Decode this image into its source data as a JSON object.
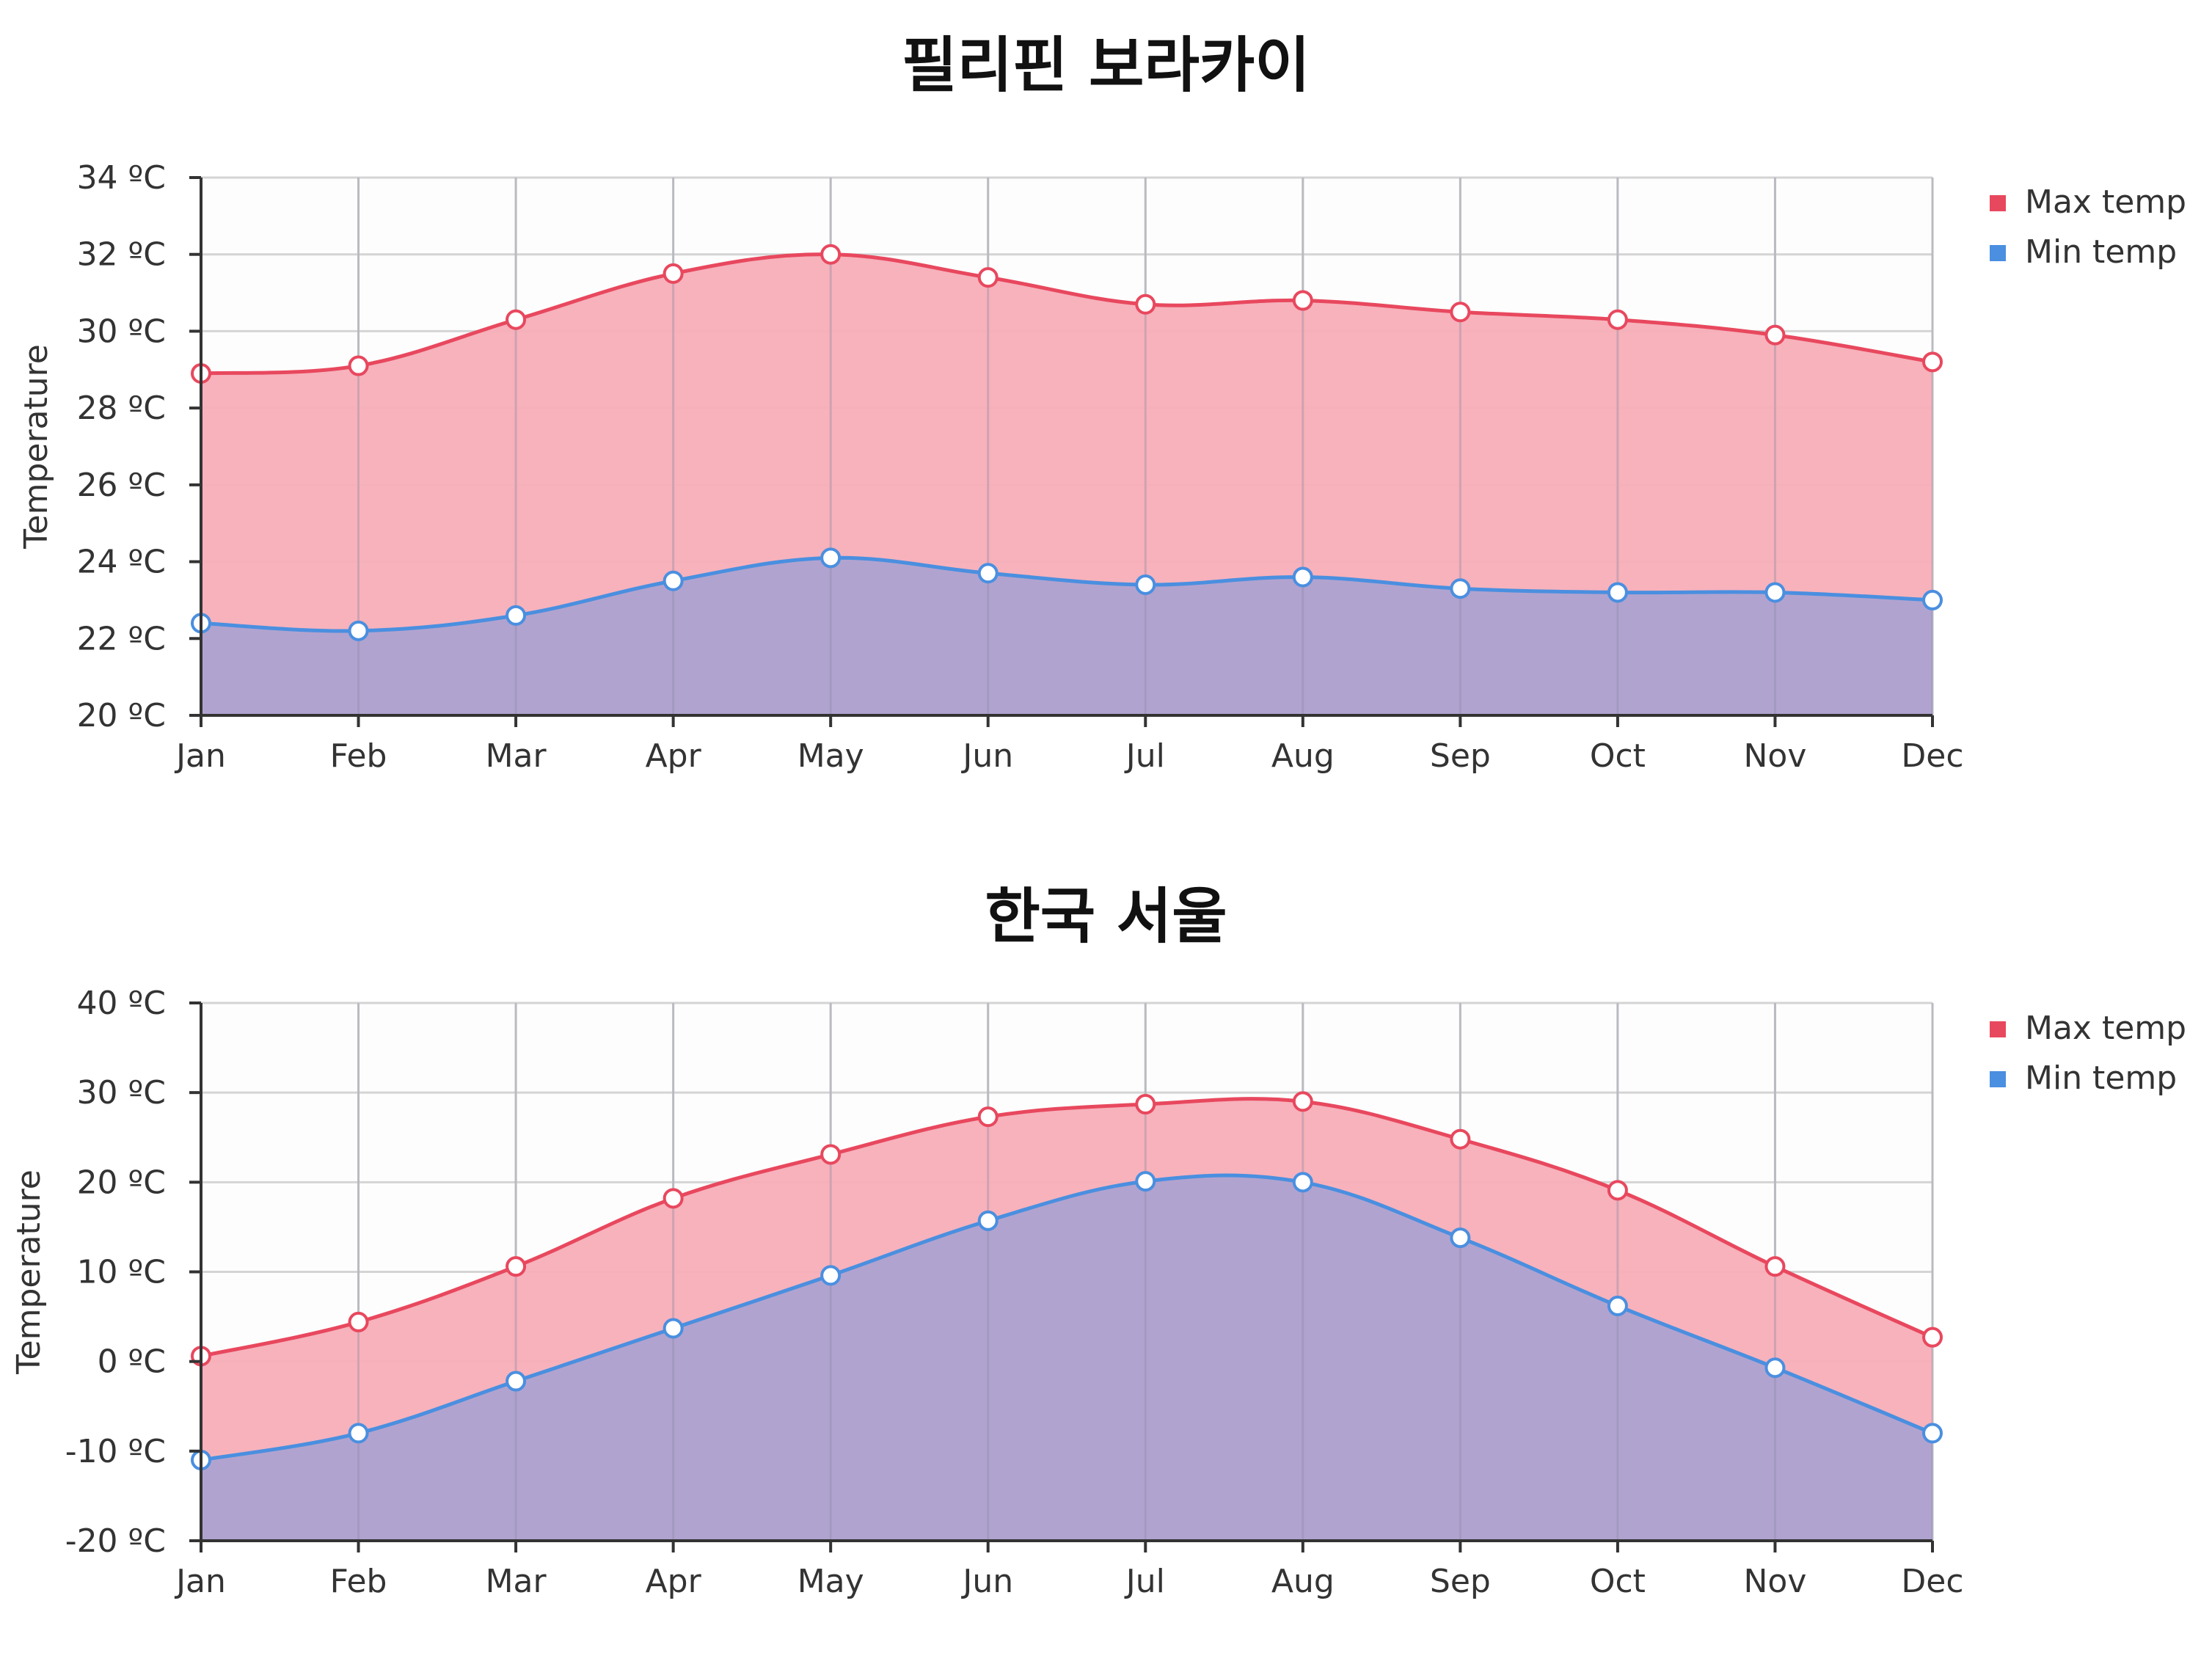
{
  "colors": {
    "max_line": "#e8485e",
    "max_fill": "#f7aeb8",
    "min_line": "#4a8fe0",
    "min_fill": "#ada2d0",
    "grid": "#d4d4d4",
    "axis": "#333333"
  },
  "chart_data": [
    {
      "type": "area",
      "title": "필리핀 보라카이",
      "ylabel": "Temperature",
      "unit": "ºC",
      "categories": [
        "Jan",
        "Feb",
        "Mar",
        "Apr",
        "May",
        "Jun",
        "Jul",
        "Aug",
        "Sep",
        "Oct",
        "Nov",
        "Dec"
      ],
      "ylim": [
        20,
        34
      ],
      "yticks": [
        "34 ºC",
        "32 ºC",
        "30 ºC",
        "28 ºC",
        "26 ºC",
        "24 ºC",
        "22 ºC",
        "20 ºC"
      ],
      "legend_position": "top-right",
      "grid": true,
      "series": [
        {
          "name": "Max temp",
          "values": [
            28.9,
            29.1,
            30.3,
            31.5,
            32.0,
            31.4,
            30.7,
            30.8,
            30.5,
            30.3,
            29.9,
            29.2
          ]
        },
        {
          "name": "Min temp",
          "values": [
            22.4,
            22.2,
            22.6,
            23.5,
            24.1,
            23.7,
            23.4,
            23.6,
            23.3,
            23.2,
            23.2,
            23.0
          ]
        }
      ]
    },
    {
      "type": "area",
      "title": "한국 서울",
      "ylabel": "Temperature",
      "unit": "ºC",
      "categories": [
        "Jan",
        "Feb",
        "Mar",
        "Apr",
        "May",
        "Jun",
        "Jul",
        "Aug",
        "Sep",
        "Oct",
        "Nov",
        "Dec"
      ],
      "ylim": [
        -20,
        40
      ],
      "yticks": [
        "40 ºC",
        "30 ºC",
        "20 ºC",
        "10 ºC",
        "0 ºC",
        "-10 ºC",
        "-20 ºC"
      ],
      "legend_position": "top-right",
      "grid": true,
      "series": [
        {
          "name": "Max temp",
          "values": [
            0.6,
            4.4,
            10.6,
            18.2,
            23.1,
            27.3,
            28.7,
            29.0,
            24.8,
            19.1,
            10.6,
            2.7
          ]
        },
        {
          "name": "Min temp",
          "values": [
            -11.0,
            -8.0,
            -2.2,
            3.7,
            9.6,
            15.7,
            20.1,
            20.0,
            13.8,
            6.2,
            -0.7,
            -8.0
          ]
        }
      ]
    }
  ]
}
